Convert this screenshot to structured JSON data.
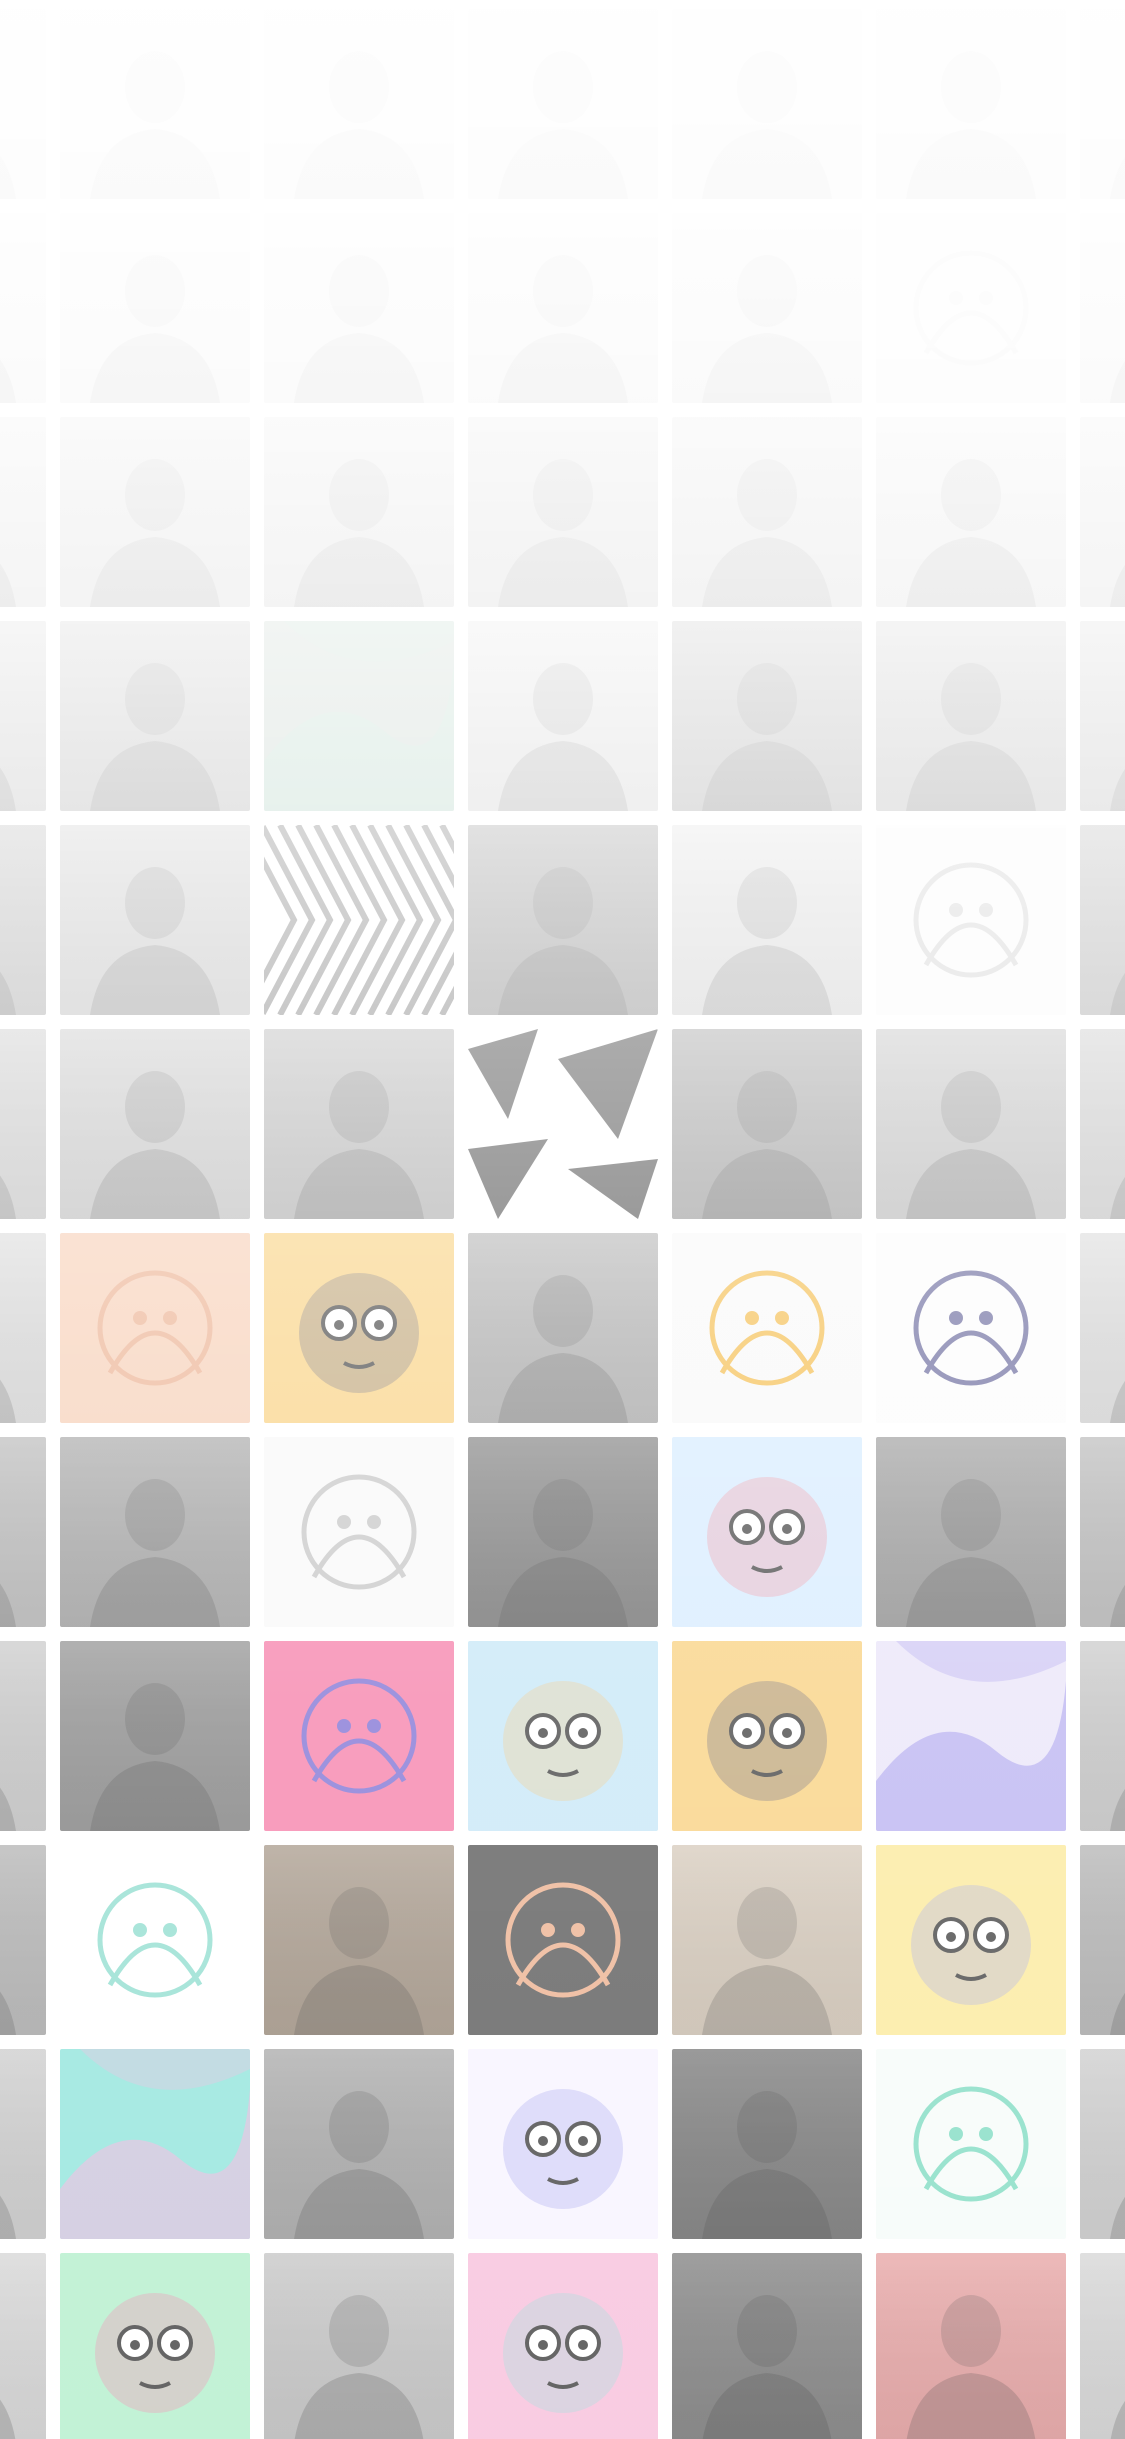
{
  "screen": {
    "description_name": "avatar-collage-background",
    "background_color": "#ffffff"
  },
  "grid": {
    "columns": 6,
    "rows": 12,
    "tiles": [
      {
        "kind": "photo",
        "tone": "#f3f3f3",
        "icon": "photo-placeholder-icon"
      },
      {
        "kind": "photo",
        "tone": "#f2f2f2",
        "icon": "photo-placeholder-icon"
      },
      {
        "kind": "photo",
        "tone": "#efefef",
        "icon": "photo-placeholder-icon"
      },
      {
        "kind": "photo",
        "tone": "#eeeeee",
        "icon": "photo-placeholder-icon"
      },
      {
        "kind": "photo",
        "tone": "#f0f0f0",
        "icon": "photo-placeholder-icon"
      },
      {
        "kind": "photo",
        "tone": "#f1f1f1",
        "icon": "photo-placeholder-icon"
      },
      {
        "kind": "photo",
        "tone": "#ececec",
        "icon": "person-silhouette-icon"
      },
      {
        "kind": "photo",
        "tone": "#ebebeb",
        "icon": "person-silhouette-icon"
      },
      {
        "kind": "photo",
        "tone": "#e9e9e9",
        "icon": "person-silhouette-icon"
      },
      {
        "kind": "photo",
        "tone": "#e6e6e6",
        "icon": "person-silhouette-icon"
      },
      {
        "kind": "illustration",
        "tone": "#efefef",
        "accent": "#d8d8d8",
        "icon": "cartoon-face-icon"
      },
      {
        "kind": "photo",
        "tone": "#eaeaea",
        "icon": "person-silhouette-icon"
      },
      {
        "kind": "photo",
        "tone": "#cfcfcf",
        "icon": "person-silhouette-icon"
      },
      {
        "kind": "photo",
        "tone": "#d4d4d4",
        "icon": "person-silhouette-icon"
      },
      {
        "kind": "photo",
        "tone": "#cccccc",
        "icon": "person-silhouette-icon"
      },
      {
        "kind": "photo",
        "tone": "#d2d2d2",
        "icon": "person-silhouette-icon"
      },
      {
        "kind": "photo",
        "tone": "#e0e0e0",
        "icon": "person-silhouette-icon"
      },
      {
        "kind": "photo",
        "tone": "#d8d8d8",
        "icon": "person-silhouette-icon"
      },
      {
        "kind": "photo",
        "tone": "#b8b8b8",
        "icon": "person-silhouette-icon"
      },
      {
        "kind": "abstract",
        "tone": "#b9c9c0",
        "accent": "#a5d6c0",
        "icon": "abstract-shape-icon"
      },
      {
        "kind": "photo",
        "tone": "#dcdcdc",
        "icon": "person-silhouette-icon"
      },
      {
        "kind": "photo",
        "tone": "#a9a9a9",
        "icon": "person-silhouette-icon"
      },
      {
        "kind": "photo",
        "tone": "#bdbdbd",
        "icon": "person-silhouette-icon"
      },
      {
        "kind": "photo",
        "tone": "#c8c8c8",
        "icon": "person-silhouette-icon"
      },
      {
        "kind": "photo",
        "tone": "#c4c4c4",
        "icon": "person-silhouette-icon"
      },
      {
        "kind": "zebra",
        "tone": "#ffffff",
        "accent": "#777777",
        "icon": "zebra-pattern-icon"
      },
      {
        "kind": "photo",
        "tone": "#8c8c8c",
        "icon": "person-silhouette-icon"
      },
      {
        "kind": "photo",
        "tone": "#dcdcdc",
        "icon": "person-silhouette-icon"
      },
      {
        "kind": "illustration",
        "tone": "#fafafa",
        "accent": "#cccccc",
        "icon": "robot-outline-icon"
      },
      {
        "kind": "photo",
        "tone": "#b0b0b0",
        "icon": "person-silhouette-icon"
      },
      {
        "kind": "photo",
        "tone": "#bcbcbc",
        "icon": "person-silhouette-icon"
      },
      {
        "kind": "photo",
        "tone": "#a8a8a8",
        "icon": "person-silhouette-icon"
      },
      {
        "kind": "geometric",
        "tone": "#ffffff",
        "accent": "#333333",
        "icon": "triangles-pattern-icon"
      },
      {
        "kind": "photo",
        "tone": "#8f8f8f",
        "icon": "person-silhouette-icon"
      },
      {
        "kind": "photo",
        "tone": "#b5b5b5",
        "icon": "person-silhouette-icon"
      },
      {
        "kind": "photo",
        "tone": "#c0c0c0",
        "icon": "person-silhouette-icon"
      },
      {
        "kind": "illustration",
        "tone": "#f5c6a8",
        "accent": "#e8a27c",
        "icon": "nose-closeup-icon"
      },
      {
        "kind": "cartoon",
        "tone": "#f8c96a",
        "accent": "#3b3b5a",
        "icon": "cartoon-boy-icon"
      },
      {
        "kind": "photo",
        "tone": "#9a9a9a",
        "icon": "person-silhouette-icon"
      },
      {
        "kind": "illustration",
        "tone": "#f7f7f7",
        "accent": "#f2b02a",
        "icon": "bird-character-icon"
      },
      {
        "kind": "illustration",
        "tone": "#fbfbfb",
        "accent": "#4d4d8a",
        "icon": "winged-character-icon"
      },
      {
        "kind": "photo",
        "tone": "#cfcfcf",
        "icon": "person-silhouette-icon"
      },
      {
        "kind": "photo",
        "tone": "#8a8a8a",
        "icon": "person-silhouette-icon"
      },
      {
        "kind": "illustration",
        "tone": "#f7f7f7",
        "accent": "#bbbbbb",
        "icon": "line-art-icon"
      },
      {
        "kind": "photo",
        "tone": "#575757",
        "icon": "person-silhouette-icon"
      },
      {
        "kind": "cartoon",
        "tone": "#cfe8ff",
        "accent": "#f06a78",
        "icon": "wizard-character-icon"
      },
      {
        "kind": "photo",
        "tone": "#7c7c7c",
        "icon": "person-silhouette-icon"
      },
      {
        "kind": "photo",
        "tone": "#a0a0a0",
        "icon": "person-silhouette-icon"
      },
      {
        "kind": "photo",
        "tone": "#6e6e6e",
        "icon": "person-silhouette-icon"
      },
      {
        "kind": "illustration",
        "tone": "#f46a9b",
        "accent": "#6a5acd",
        "icon": "psychedelic-face-icon"
      },
      {
        "kind": "cartoon",
        "tone": "#bde3f6",
        "accent": "#f2b85e",
        "icon": "mustache-character-icon"
      },
      {
        "kind": "cartoon",
        "tone": "#f8c96a",
        "accent": "#3b3b5a",
        "icon": "cartoon-boy-icon"
      },
      {
        "kind": "abstract",
        "tone": "#e6e0f8",
        "accent": "#8b7ee8",
        "icon": "abstract-swirl-icon"
      },
      {
        "kind": "photo",
        "tone": "#b8b8b8",
        "icon": "person-silhouette-icon"
      },
      {
        "kind": "illustration",
        "tone": "#ffffff",
        "accent": "#7fd8c8",
        "icon": "monster-doodle-icon"
      },
      {
        "kind": "photo",
        "tone": "#8d7a66",
        "icon": "person-silhouette-icon"
      },
      {
        "kind": "illustration",
        "tone": "#3c3c3c",
        "accent": "#e9a37c",
        "icon": "astronaut-icon"
      },
      {
        "kind": "photo",
        "tone": "#c9b9a5",
        "icon": "person-silhouette-icon"
      },
      {
        "kind": "cartoon",
        "tone": "#fbe68a",
        "accent": "#8b8fe8",
        "icon": "speaker-character-icon"
      },
      {
        "kind": "photo",
        "tone": "#9b9b9b",
        "icon": "person-silhouette-icon"
      },
      {
        "kind": "abstract",
        "tone": "#7ee0d6",
        "accent": "#f2a2d6",
        "icon": "holographic-shape-icon"
      },
      {
        "kind": "photo",
        "tone": "#8e8e8e",
        "icon": "person-silhouette-icon"
      },
      {
        "kind": "cartoon",
        "tone": "#f6f2ff",
        "accent": "#8a8ae8",
        "icon": "blue-face-icon"
      },
      {
        "kind": "photo",
        "tone": "#4f4f4f",
        "icon": "person-silhouette-icon"
      },
      {
        "kind": "illustration",
        "tone": "#f4fbf8",
        "accent": "#6cd6b8",
        "icon": "many-eyed-monster-icon"
      },
      {
        "kind": "photo",
        "tone": "#bdbdbd",
        "icon": "person-silhouette-icon"
      },
      {
        "kind": "cartoon",
        "tone": "#a8ecc4",
        "accent": "#f06a9a",
        "icon": "pink-bird-icon"
      },
      {
        "kind": "photo",
        "tone": "#b4b4b4",
        "icon": "person-silhouette-icon"
      },
      {
        "kind": "cartoon",
        "tone": "#f6b6d6",
        "accent": "#7ed8d0",
        "icon": "frog-character-icon"
      },
      {
        "kind": "photo",
        "tone": "#5a5a5a",
        "icon": "person-silhouette-icon"
      },
      {
        "kind": "photo",
        "tone": "#e08888",
        "icon": "person-silhouette-icon"
      },
      {
        "kind": "photo",
        "tone": "#c9c9c9",
        "icon": "person-silhouette-icon"
      }
    ]
  }
}
